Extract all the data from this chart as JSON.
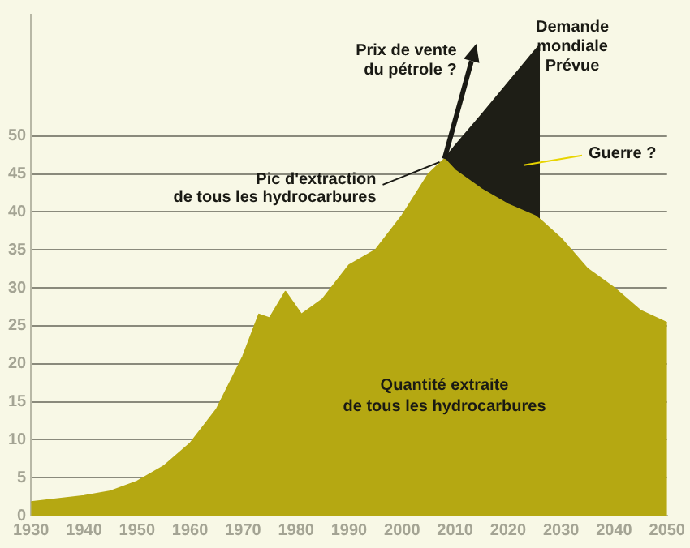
{
  "chart_data": {
    "type": "area",
    "x": [
      1930,
      1935,
      1940,
      1945,
      1950,
      1955,
      1960,
      1965,
      1970,
      1973,
      1975,
      1978,
      1981,
      1983,
      1985,
      1990,
      1995,
      2000,
      2005,
      2008,
      2010,
      2015,
      2020,
      2025,
      2026,
      2030,
      2035,
      2040,
      2045,
      2050
    ],
    "series": [
      {
        "color": "#b5a812",
        "values": [
          1.8,
          2.2,
          2.6,
          3.2,
          4.5,
          6.5,
          9.5,
          14,
          21,
          26.5,
          26,
          29.5,
          26.5,
          27.5,
          28.5,
          33,
          35,
          39.5,
          45,
          47,
          45.5,
          43,
          41,
          39.5,
          39,
          36.5,
          32.5,
          30,
          27,
          25.4
        ]
      },
      {
        "color": "#1e1e16",
        "x": [
          2008,
          2010,
          2015,
          2020,
          2025,
          2026
        ],
        "values": [
          47,
          48.7,
          52.8,
          57,
          61.2,
          62
        ]
      }
    ],
    "xlim": [
      1930,
      2050
    ],
    "xticks": [
      1930,
      1940,
      1950,
      1960,
      1970,
      1980,
      1990,
      2000,
      2010,
      2020,
      2030,
      2040,
      2050
    ],
    "ylim": [
      0,
      66
    ],
    "yticks": [
      0,
      5,
      10,
      15,
      20,
      25,
      30,
      35,
      40,
      45,
      50
    ],
    "grid": "y",
    "legend": false,
    "annotations": [
      {
        "text": "Pic d'extraction\nde tous les hydrocarbures",
        "x": 2008,
        "y": 47
      },
      "Prix de vente\ndu pétrole ?",
      {
        "text": "Demande\nmondiale\nPrévue",
        "x": 2026,
        "y": 62
      },
      "Guerre ?",
      "Quantité extraite\nde tous les hydrocarbures"
    ]
  }
}
